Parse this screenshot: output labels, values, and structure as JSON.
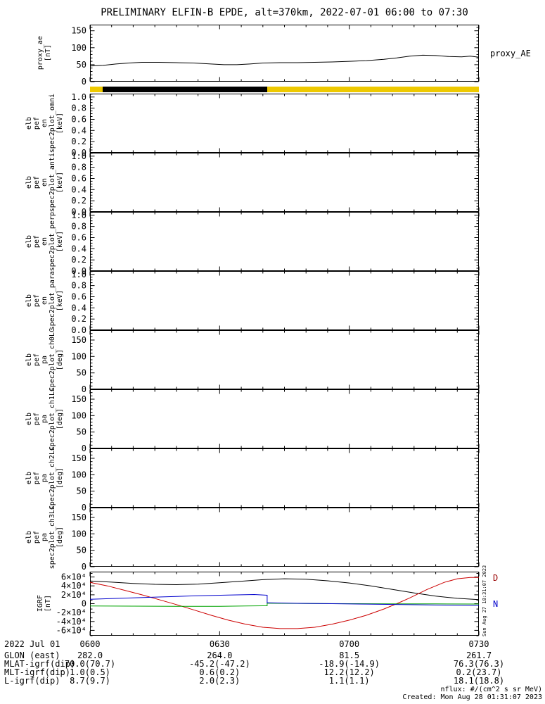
{
  "title": "PRELIMINARY ELFIN-B EPDE, alt=370km, 2022-07-01 06:00 to 07:30",
  "right_labels": {
    "proxy": "proxy_AE",
    "igrf_d": {
      "text": "D",
      "color": "#990000"
    },
    "igrf_n": {
      "text": "N",
      "color": "#0000cc"
    }
  },
  "side_timestamp": "Sun Aug 27 18:31:07 2023",
  "footnotes": {
    "nflux": "nflux: #/(cm^2 s sr MeV)",
    "created": "Created: Mon Aug 28 01:31:07 2023"
  },
  "orbit_bar": {
    "segments": [
      {
        "color": "#eec900",
        "start_min": 0,
        "end_min": 3
      },
      {
        "color": "#000000",
        "start_min": 3,
        "end_min": 41
      },
      {
        "color": "#eec900",
        "start_min": 41,
        "end_min": 90
      }
    ]
  },
  "panels": [
    {
      "chart": "proxy_ae",
      "label_lines": [
        "proxy_ae",
        "[nT]"
      ],
      "ylim": [
        0,
        168
      ],
      "yminor": 10,
      "yticks": [
        {
          "v": 0,
          "l": "0"
        },
        {
          "v": 50,
          "l": "50"
        },
        {
          "v": 100,
          "l": "100"
        },
        {
          "v": 150,
          "l": "150"
        }
      ]
    },
    {
      "chart": null,
      "label_lines": [
        "elb",
        "pef",
        "en",
        "spec2plot_omni",
        "[keV]"
      ],
      "ylim": [
        0,
        1.06
      ],
      "yminor": 0.05,
      "yticks": [
        {
          "v": 0,
          "l": "0.0"
        },
        {
          "v": 0.2,
          "l": "0.2"
        },
        {
          "v": 0.4,
          "l": "0.4"
        },
        {
          "v": 0.6,
          "l": "0.6"
        },
        {
          "v": 0.8,
          "l": "0.8"
        },
        {
          "v": 1,
          "l": "1.0"
        }
      ]
    },
    {
      "chart": null,
      "label_lines": [
        "elb",
        "pef",
        "en",
        "spec2plot_anti",
        "[keV]"
      ],
      "ylim": [
        0,
        1.06
      ],
      "yminor": 0.05,
      "yticks": [
        {
          "v": 0,
          "l": "0.0"
        },
        {
          "v": 0.2,
          "l": "0.2"
        },
        {
          "v": 0.4,
          "l": "0.4"
        },
        {
          "v": 0.6,
          "l": "0.6"
        },
        {
          "v": 0.8,
          "l": "0.8"
        },
        {
          "v": 1,
          "l": "1.0"
        }
      ]
    },
    {
      "chart": null,
      "label_lines": [
        "elb",
        "pef",
        "en",
        "spec2plot_perp",
        "[keV]"
      ],
      "ylim": [
        0,
        1.06
      ],
      "yminor": 0.05,
      "yticks": [
        {
          "v": 0,
          "l": "0.0"
        },
        {
          "v": 0.2,
          "l": "0.2"
        },
        {
          "v": 0.4,
          "l": "0.4"
        },
        {
          "v": 0.6,
          "l": "0.6"
        },
        {
          "v": 0.8,
          "l": "0.8"
        },
        {
          "v": 1,
          "l": "1.0"
        }
      ]
    },
    {
      "chart": null,
      "label_lines": [
        "elb",
        "pef",
        "en",
        "spec2plot_para",
        "[keV]"
      ],
      "ylim": [
        0,
        1.06
      ],
      "yminor": 0.05,
      "yticks": [
        {
          "v": 0,
          "l": "0.0"
        },
        {
          "v": 0.2,
          "l": "0.2"
        },
        {
          "v": 0.4,
          "l": "0.4"
        },
        {
          "v": 0.6,
          "l": "0.6"
        },
        {
          "v": 0.8,
          "l": "0.8"
        },
        {
          "v": 1,
          "l": "1.0"
        }
      ]
    },
    {
      "chart": null,
      "label_lines": [
        "elb",
        "pef",
        "pa",
        "spec2plot_ch0LC",
        "[deg]"
      ],
      "ylim": [
        0,
        180
      ],
      "yminor": 10,
      "yticks": [
        {
          "v": 0,
          "l": "0"
        },
        {
          "v": 50,
          "l": "50"
        },
        {
          "v": 100,
          "l": "100"
        },
        {
          "v": 150,
          "l": "150"
        }
      ]
    },
    {
      "chart": null,
      "label_lines": [
        "elb",
        "pef",
        "pa",
        "spec2plot_ch1LC",
        "[deg]"
      ],
      "ylim": [
        0,
        180
      ],
      "yminor": 10,
      "yticks": [
        {
          "v": 0,
          "l": "0"
        },
        {
          "v": 50,
          "l": "50"
        },
        {
          "v": 100,
          "l": "100"
        },
        {
          "v": 150,
          "l": "150"
        }
      ]
    },
    {
      "chart": null,
      "label_lines": [
        "elb",
        "pef",
        "pa",
        "spec2plot_ch2LC",
        "[deg]"
      ],
      "ylim": [
        0,
        180
      ],
      "yminor": 10,
      "yticks": [
        {
          "v": 0,
          "l": "0"
        },
        {
          "v": 50,
          "l": "50"
        },
        {
          "v": 100,
          "l": "100"
        },
        {
          "v": 150,
          "l": "150"
        }
      ]
    },
    {
      "chart": null,
      "label_lines": [
        "elb",
        "pef",
        "pa",
        "spec2plot_ch3LC",
        "[deg]"
      ],
      "ylim": [
        0,
        180
      ],
      "yminor": 10,
      "yticks": [
        {
          "v": 0,
          "l": "0"
        },
        {
          "v": 50,
          "l": "50"
        },
        {
          "v": 100,
          "l": "100"
        },
        {
          "v": 150,
          "l": "150"
        }
      ]
    },
    {
      "chart": "igrf",
      "label_lines": [
        "IGRF",
        "[nT]"
      ],
      "ylim": [
        -72000,
        72000
      ],
      "yminor": 10000,
      "yticks": [
        {
          "v": 60000,
          "l": "6×10⁴"
        },
        {
          "v": 40000,
          "l": "4×10⁴"
        },
        {
          "v": 20000,
          "l": "2×10⁴"
        },
        {
          "v": 0,
          "l": "0"
        },
        {
          "v": -20000,
          "l": "-2×10⁴"
        },
        {
          "v": -40000,
          "l": "-4×10⁴"
        },
        {
          "v": -60000,
          "l": "-6×10⁴"
        }
      ]
    }
  ],
  "chart_data": {
    "type": "line",
    "title": "PRELIMINARY ELFIN-B EPDE, alt=370km, 2022-07-01 06:00 to 07:30",
    "x_axis": {
      "range_minutes_from_0600": [
        0,
        90
      ],
      "ticks": [
        "0600",
        "0630",
        "0700",
        "0730"
      ],
      "minor_tick_minutes": 5
    },
    "proxy_ae": {
      "name": "proxy_AE",
      "color": "#000000",
      "ylabel": "proxy_ae [nT]",
      "ylim": [
        0,
        168
      ],
      "x": [
        0,
        3,
        6,
        9,
        12,
        16,
        20,
        24,
        28,
        31,
        34,
        37,
        40,
        44,
        48,
        52,
        56,
        60,
        64,
        68,
        71,
        74,
        77,
        80,
        83,
        86,
        88,
        90
      ],
      "y": [
        46,
        48,
        52,
        55,
        57,
        57,
        56,
        55,
        52,
        50,
        50,
        52,
        55,
        56,
        56,
        57,
        58,
        60,
        62,
        66,
        70,
        75,
        78,
        77,
        74,
        73,
        75,
        72
      ]
    },
    "igrf": {
      "ylabel": "IGRF [nT]",
      "ylim": [
        -72000,
        72000
      ],
      "series": [
        {
          "name": "black",
          "end_label": "",
          "color": "#000000",
          "x": [
            0,
            5,
            10,
            15,
            20,
            25,
            30,
            35,
            40,
            45,
            50,
            55,
            60,
            65,
            70,
            75,
            80,
            85,
            90
          ],
          "y": [
            51000,
            48500,
            45500,
            43500,
            42800,
            44000,
            47000,
            50500,
            54000,
            56000,
            55000,
            51500,
            46500,
            40000,
            32000,
            24000,
            17000,
            12000,
            9000
          ]
        },
        {
          "name": "red",
          "end_label": "D",
          "color": "#cc0000",
          "x": [
            0,
            4,
            8,
            12,
            16,
            20,
            24,
            28,
            32,
            36,
            40,
            44,
            48,
            52,
            56,
            60,
            64,
            68,
            71,
            74,
            78,
            82,
            85,
            88,
            90
          ],
          "y": [
            48000,
            40000,
            30000,
            20000,
            9000,
            -2000,
            -14000,
            -26000,
            -37000,
            -46000,
            -53000,
            -56000,
            -56000,
            -53000,
            -46000,
            -37000,
            -26000,
            -12000,
            0,
            13000,
            32000,
            48000,
            56000,
            59000,
            59000
          ]
        },
        {
          "name": "green",
          "end_label": "",
          "color": "#00a400",
          "x": [
            0,
            10,
            20,
            30,
            36,
            40,
            41,
            41,
            50,
            60,
            70,
            80,
            90
          ],
          "y": [
            -5000,
            -5500,
            -6000,
            -6000,
            -5200,
            -4800,
            -4800,
            1000,
            500,
            0,
            -300,
            -500,
            -800
          ]
        },
        {
          "name": "blue",
          "end_label": "N",
          "color": "#0000cc",
          "x": [
            0,
            8,
            16,
            24,
            32,
            38,
            41,
            41,
            48,
            56,
            64,
            72,
            80,
            90
          ],
          "y": [
            10000,
            12500,
            15000,
            17500,
            19500,
            20500,
            19000,
            2000,
            800,
            0,
            -1000,
            -2000,
            -3000,
            -4000
          ]
        }
      ]
    },
    "spec_panels": "blank (no flux data plotted in the eight spec2plot panels)"
  },
  "footer_table": {
    "rows": [
      {
        "label": "2022 Jul 01",
        "values": [
          "0600",
          "0630",
          "0700",
          "0730"
        ]
      },
      {
        "label": "GLON (east)",
        "values": [
          "282.0",
          "264.0",
          "81.5",
          "261.7"
        ]
      },
      {
        "label": "MLAT-igrf(dip)",
        "values": [
          "70.0(70.7)",
          "-45.2(-47.2)",
          "-18.9(-14.9)",
          "76.3(76.3)"
        ]
      },
      {
        "label": "MLT-igrf(dip)",
        "values": [
          "1.0(0.5)",
          "0.6(0.2)",
          "12.2(12.2)",
          "0.2(23.7)"
        ]
      },
      {
        "label": "L-igrf(dip)",
        "values": [
          "8.7(9.7)",
          "2.0(2.3)",
          "1.1(1.1)",
          "18.1(18.8)"
        ]
      }
    ]
  }
}
